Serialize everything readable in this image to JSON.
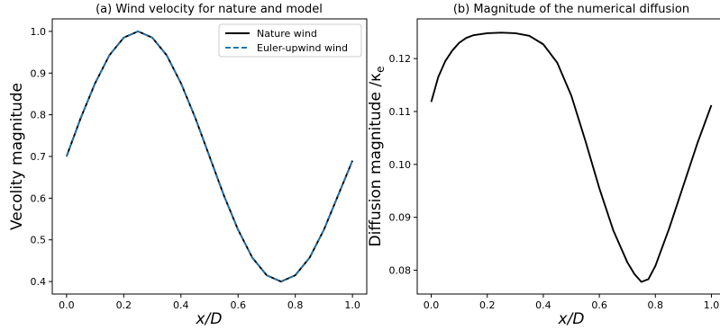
{
  "chart_data": [
    {
      "type": "line",
      "title": "(a) Wind velocity for nature and model",
      "xlabel": "x/D",
      "ylabel": "Vecolity magnitude",
      "xlim": [
        -0.05,
        1.05
      ],
      "ylim": [
        0.37,
        1.03
      ],
      "xticks": [
        0.0,
        0.2,
        0.4,
        0.6,
        0.8,
        1.0
      ],
      "xtick_labels": [
        "0.0",
        "0.2",
        "0.4",
        "0.6",
        "0.8",
        "1.0"
      ],
      "yticks": [
        0.4,
        0.5,
        0.6,
        0.7,
        0.8,
        0.9,
        1.0
      ],
      "ytick_labels": [
        "0.4",
        "0.5",
        "0.6",
        "0.7",
        "0.8",
        "0.9",
        "1.0"
      ],
      "legend": "top-right",
      "grid": false,
      "series": [
        {
          "name": "Nature wind",
          "color": "#000000",
          "style": "solid",
          "x": [
            0.0,
            0.05,
            0.1,
            0.15,
            0.2,
            0.25,
            0.3,
            0.35,
            0.4,
            0.45,
            0.5,
            0.55,
            0.6,
            0.65,
            0.7,
            0.75,
            0.8,
            0.85,
            0.9,
            0.95,
            1.0
          ],
          "y": [
            0.7,
            0.793,
            0.876,
            0.943,
            0.985,
            1.0,
            0.985,
            0.943,
            0.876,
            0.793,
            0.7,
            0.607,
            0.524,
            0.457,
            0.415,
            0.4,
            0.415,
            0.457,
            0.524,
            0.607,
            0.69
          ]
        },
        {
          "name": "Euler-upwind wind",
          "color": "#1f77b4",
          "style": "dashed",
          "x": [
            0.0,
            0.05,
            0.1,
            0.15,
            0.2,
            0.25,
            0.3,
            0.35,
            0.4,
            0.45,
            0.5,
            0.55,
            0.6,
            0.65,
            0.7,
            0.75,
            0.8,
            0.85,
            0.9,
            0.95,
            1.0
          ],
          "y": [
            0.7,
            0.793,
            0.876,
            0.943,
            0.985,
            1.0,
            0.985,
            0.943,
            0.876,
            0.793,
            0.7,
            0.607,
            0.524,
            0.457,
            0.415,
            0.4,
            0.415,
            0.457,
            0.524,
            0.607,
            0.69
          ]
        }
      ]
    },
    {
      "type": "line",
      "title": "(b) Magnitude of the numerical diffusion",
      "xlabel": "x/D",
      "ylabel": "Diffusion magnitude /κ",
      "ylabel_subscript": "e",
      "xlim": [
        -0.05,
        1.05
      ],
      "ylim": [
        0.0755,
        0.1275
      ],
      "xticks": [
        0.0,
        0.2,
        0.4,
        0.6,
        0.8,
        1.0
      ],
      "xtick_labels": [
        "0.0",
        "0.2",
        "0.4",
        "0.6",
        "0.8",
        "1.0"
      ],
      "yticks": [
        0.08,
        0.09,
        0.1,
        0.11,
        0.12
      ],
      "ytick_labels": [
        "0.08",
        "0.09",
        "0.10",
        "0.11",
        "0.12"
      ],
      "grid": false,
      "series": [
        {
          "color": "#000000",
          "style": "solid",
          "x": [
            0.0,
            0.025,
            0.05,
            0.075,
            0.1,
            0.125,
            0.15,
            0.2,
            0.25,
            0.3,
            0.35,
            0.4,
            0.45,
            0.5,
            0.55,
            0.6,
            0.65,
            0.7,
            0.725,
            0.75,
            0.775,
            0.8,
            0.85,
            0.9,
            0.95,
            1.0
          ],
          "y": [
            0.1118,
            0.1165,
            0.1195,
            0.1215,
            0.123,
            0.1239,
            0.1244,
            0.1248,
            0.1249,
            0.1248,
            0.1243,
            0.1227,
            0.1192,
            0.113,
            0.1045,
            0.0955,
            0.0875,
            0.0815,
            0.0793,
            0.0778,
            0.0783,
            0.0808,
            0.088,
            0.096,
            0.104,
            0.1112
          ]
        }
      ]
    }
  ]
}
